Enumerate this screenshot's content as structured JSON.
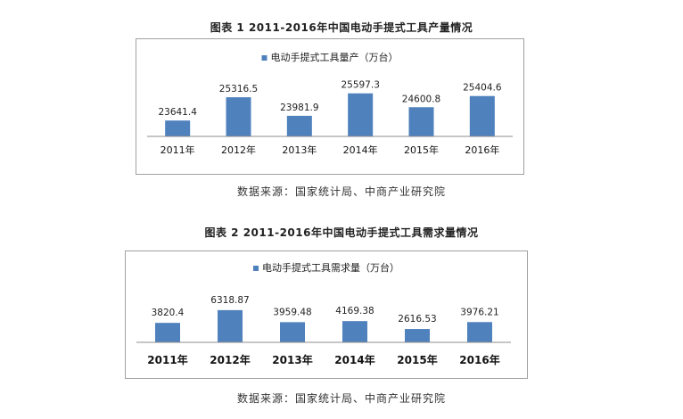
{
  "chart_data": [
    {
      "type": "bar",
      "title": "图表 1  2011-2016年中国电动手提式工具产量情况",
      "series": [
        {
          "name": "电动手提式工具量产（万台）",
          "values": [
            23641.4,
            25316.5,
            23981.9,
            25597.3,
            24600.8,
            25404.6
          ]
        }
      ],
      "categories": [
        "2011年",
        "2012年",
        "2013年",
        "2014年",
        "2015年",
        "2016年"
      ],
      "data_labels": [
        "23641.4",
        "25316.5",
        "23981.9",
        "25597.3",
        "24600.8",
        "25404.6"
      ],
      "ylim": [
        22500,
        25900
      ],
      "legend_position": "top-center",
      "bar_color": "#4f81bd",
      "source": "数据来源：国家统计局、中商产业研究院"
    },
    {
      "type": "bar",
      "title": "图表 2  2011-2016年中国电动手提式工具需求量情况",
      "series": [
        {
          "name": "电动手提式工具需求量（万台）",
          "values": [
            3820.4,
            6318.87,
            3959.48,
            4169.38,
            2616.53,
            3976.21
          ]
        }
      ],
      "categories": [
        "2011年",
        "2012年",
        "2013年",
        "2014年",
        "2015年",
        "2016年"
      ],
      "data_labels": [
        "3820.4",
        "6318.87",
        "3959.48",
        "4169.38",
        "2616.53",
        "3976.21"
      ],
      "ylim": [
        0,
        7000
      ],
      "legend_position": "top-center",
      "bar_color": "#4f81bd",
      "source": "数据来源：国家统计局、中商产业研究院"
    }
  ]
}
